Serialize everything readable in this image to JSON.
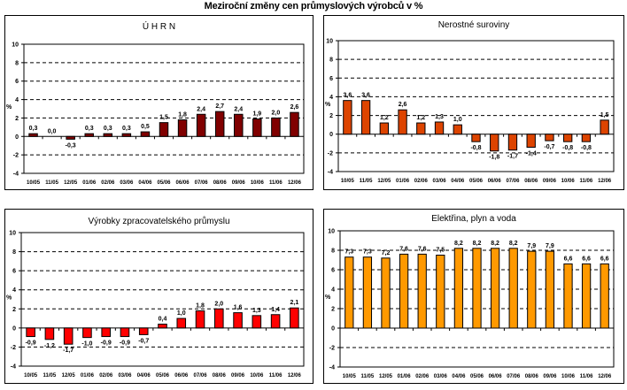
{
  "title": "Meziroční změny cen průmyslových výrobců v %",
  "chart_data": [
    {
      "type": "bar",
      "title": "Ú H R N",
      "ylabel": "%",
      "xlabel": "",
      "ylim": [
        -4,
        10
      ],
      "yticks": [
        -4,
        -2,
        0,
        2,
        4,
        6,
        8,
        10
      ],
      "grid": "dashed horizontal",
      "color": "#800000",
      "categories": [
        "10/05",
        "11/05",
        "12/05",
        "01/06",
        "02/06",
        "03/06",
        "04/06",
        "05/06",
        "06/06",
        "07/06",
        "08/06",
        "09/06",
        "10/06",
        "11/06",
        "12/06"
      ],
      "values": [
        0.3,
        0.0,
        -0.3,
        0.3,
        0.3,
        0.3,
        0.5,
        1.5,
        1.8,
        2.4,
        2.7,
        2.4,
        1.9,
        2.0,
        2.6
      ],
      "labels": [
        "0,3",
        "0,0",
        "-0,3",
        "0,3",
        "0,3",
        "0,3",
        "0,5",
        "1,5",
        "1,8",
        "2,4",
        "2,7",
        "2,4",
        "1,9",
        "2,0",
        "2,6"
      ]
    },
    {
      "type": "bar",
      "title": "Nerostné suroviny",
      "ylabel": "%",
      "xlabel": "",
      "ylim": [
        -4,
        10
      ],
      "yticks": [
        -4,
        -2,
        0,
        2,
        4,
        6,
        8,
        10
      ],
      "grid": "dashed horizontal",
      "color": "#DD4400",
      "categories": [
        "10/05",
        "11/05",
        "12/05",
        "01/06",
        "02/06",
        "03/06",
        "04/06",
        "05/06",
        "06/06",
        "07/06",
        "08/06",
        "09/06",
        "10/06",
        "11/06",
        "12/06"
      ],
      "values": [
        3.6,
        3.6,
        1.2,
        2.6,
        1.2,
        1.3,
        1.0,
        -0.8,
        -1.8,
        -1.7,
        -1.4,
        -0.7,
        -0.8,
        -0.8,
        1.5
      ],
      "labels": [
        "3,6",
        "3,6",
        "1,2",
        "2,6",
        "1,2",
        "1,3",
        "1,0",
        "-0,8",
        "-1,8",
        "-1,7",
        "-1,4",
        "-0,7",
        "-0,8",
        "-0,8",
        "1,5"
      ]
    },
    {
      "type": "bar",
      "title": "Výrobky zpracovatelského průmyslu",
      "ylabel": "%",
      "xlabel": "",
      "ylim": [
        -4,
        10
      ],
      "yticks": [
        -4,
        -2,
        0,
        2,
        4,
        6,
        8,
        10
      ],
      "grid": "dashed horizontal",
      "color": "#FF0000",
      "categories": [
        "10/05",
        "11/05",
        "12/05",
        "01/06",
        "02/06",
        "03/06",
        "04/06",
        "05/06",
        "06/06",
        "07/06",
        "08/06",
        "09/06",
        "10/06",
        "11/06",
        "12/06"
      ],
      "values": [
        -0.9,
        -1.2,
        -1.7,
        -1.0,
        -0.9,
        -0.9,
        -0.7,
        0.4,
        1.0,
        1.8,
        2.0,
        1.6,
        1.3,
        1.4,
        2.1
      ],
      "labels": [
        "-0,9",
        "-1,2",
        "-1,7",
        "-1,0",
        "-0,9",
        "-0,9",
        "-0,7",
        "0,4",
        "1,0",
        "1,8",
        "2,0",
        "1,6",
        "1,3",
        "1,4",
        "2,1"
      ]
    },
    {
      "type": "bar",
      "title": "Elektřina, plyn a voda",
      "ylabel": "%",
      "xlabel": "",
      "ylim": [
        -4,
        10
      ],
      "yticks": [
        -4,
        -2,
        0,
        2,
        4,
        6,
        8,
        10
      ],
      "grid": "dashed horizontal",
      "color": "#FF9900",
      "categories": [
        "10/05",
        "11/05",
        "12/05",
        "01/06",
        "02/06",
        "03/06",
        "04/06",
        "05/06",
        "06/06",
        "07/06",
        "08/06",
        "09/06",
        "10/06",
        "11/06",
        "12/06"
      ],
      "values": [
        7.3,
        7.3,
        7.2,
        7.6,
        7.6,
        7.5,
        8.2,
        8.2,
        8.2,
        8.2,
        7.9,
        7.9,
        6.6,
        6.6,
        6.6
      ],
      "labels": [
        "7,3",
        "7,3",
        "7,2",
        "7,6",
        "7,6",
        "7,5",
        "8,2",
        "8,2",
        "8,2",
        "8,2",
        "7,9",
        "7,9",
        "6,6",
        "6,6",
        "6,6"
      ]
    }
  ]
}
